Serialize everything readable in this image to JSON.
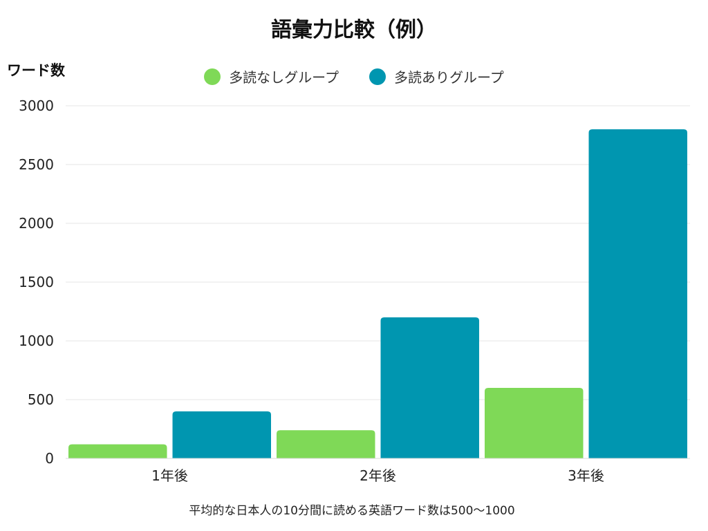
{
  "chart_data": {
    "type": "bar",
    "title": "語彙力比較（例）",
    "ylabel": "ワード数",
    "xlabel": "",
    "categories": [
      "1年後",
      "2年後",
      "3年後"
    ],
    "series": [
      {
        "name": "多読なしグループ",
        "values": [
          120,
          240,
          600
        ],
        "color": "#7fd957"
      },
      {
        "name": "多読ありグループ",
        "values": [
          400,
          1200,
          2800
        ],
        "color": "#0096b0"
      }
    ],
    "ylim": [
      0,
      3000
    ],
    "yticks": [
      0,
      500,
      1000,
      1500,
      2000,
      2500,
      3000
    ],
    "grid": true,
    "legend_position": "top-center",
    "footnote": "平均的な日本人の10分間に読める英語ワード数は500〜1000"
  }
}
